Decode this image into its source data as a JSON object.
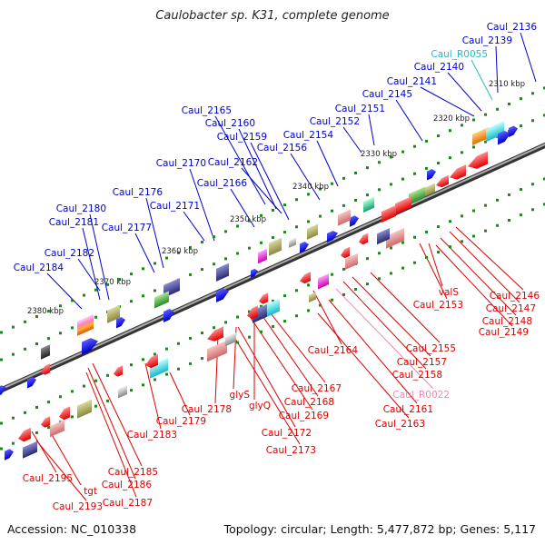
{
  "title": "Caulobacter sp. K31, complete genome",
  "footer": {
    "accession": "Accession: NC_010338",
    "summary": "Topology: circular; Length: 5,477,872 bp; Genes: 5,117"
  },
  "colors": {
    "forward_label": "#0000cc",
    "reverse_label": "#dd0000",
    "tRNA_label": "#22bbcc",
    "rRNA_label": "#ee88bb",
    "backbone": "#666666",
    "tick": "#1a8a1a"
  },
  "ruler": [
    "2310 kbp",
    "2320 kbp",
    "2330 kbp",
    "2340 kbp",
    "2350 kbp",
    "2360 kbp",
    "2370 kbp",
    "2380 kbp"
  ],
  "top_labels": [
    "Caul_2136",
    "Caul_2139",
    "Caul_R0055",
    "Caul_2140",
    "Caul_2141",
    "Caul_2145",
    "Caul_2151",
    "Caul_2152",
    "Caul_2154",
    "Caul_2156",
    "Caul_2159",
    "Caul_2160",
    "Caul_2165",
    "Caul_2162",
    "Caul_2170",
    "Caul_2166",
    "Caul_2171",
    "Caul_2176",
    "Caul_2177",
    "Caul_2180",
    "Caul_2181",
    "Caul_2182",
    "Caul_2184"
  ],
  "bottom_labels": [
    "Caul_2146",
    "Caul_2147",
    "valS",
    "Caul_2148",
    "Caul_2153",
    "Caul_2149",
    "Caul_2164",
    "Caul_2155",
    "Caul_2157",
    "Caul_2158",
    "Caul_R0022",
    "Caul_2161",
    "Caul_2163",
    "Caul_2167",
    "Caul_2168",
    "glyS",
    "glyQ",
    "Caul_2169",
    "Caul_2178",
    "Caul_2172",
    "Caul_2173",
    "Caul_2179",
    "Caul_2183",
    "Caul_2185",
    "Caul_2195",
    "tgt",
    "Caul_2186",
    "Caul_2187",
    "Caul_2193"
  ]
}
